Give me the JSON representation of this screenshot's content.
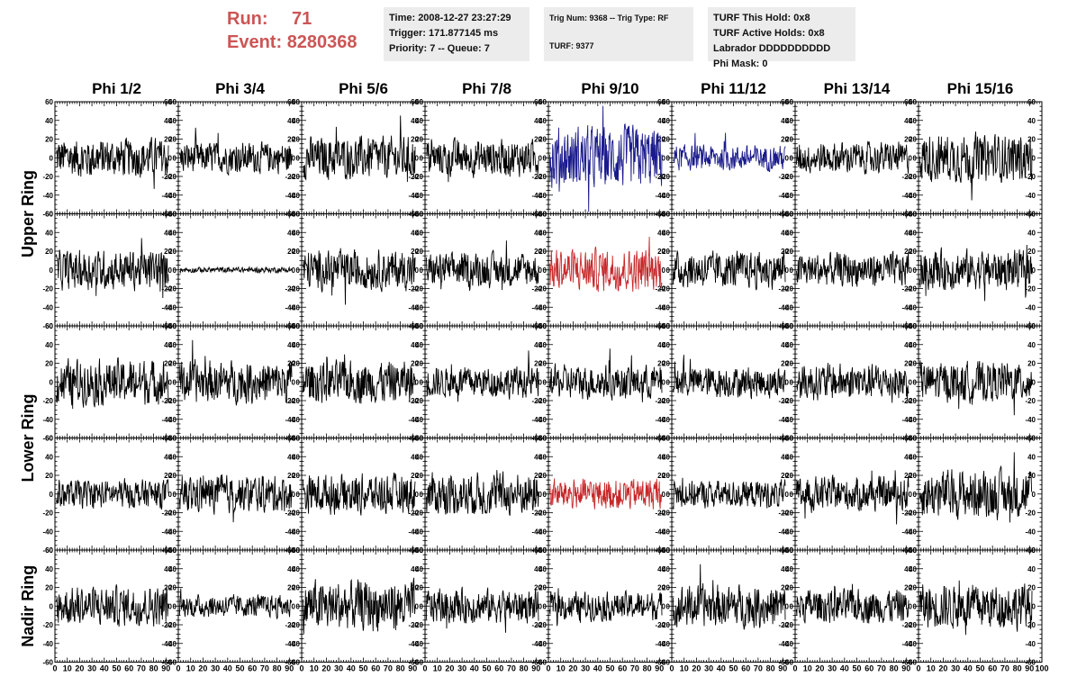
{
  "header": {
    "run_label": "Run:",
    "run_value": "71",
    "event_label": "Event:",
    "event_value": "8280368",
    "time_box": [
      "Time: 2008-12-27 23:27:29",
      "Trigger: 171.877145 ms",
      "Priority: 7 -- Queue: 7"
    ],
    "trig_box": [
      "Trig Num: 9368 -- Trig Type: RF",
      "TURF: 9377"
    ],
    "turf_box": [
      "TURF This Hold: 0x8",
      "TURF Active Holds: 0x8",
      "Labrador DDDDDDDDDD",
      "Phi Mask: 0"
    ]
  },
  "colors": {
    "header_red": "#cc5555",
    "trace_black": "#000000",
    "trace_blue": "#1a1a8c",
    "trace_red": "#c8282a"
  },
  "chart_data": {
    "type": "line",
    "description_of_grid": "5 rows x 8 columns of waveform panels",
    "column_titles": [
      "Phi 1/2",
      "Phi 3/4",
      "Phi 5/6",
      "Phi 7/8",
      "Phi 9/10",
      "Phi 11/12",
      "Phi 13/14",
      "Phi 15/16"
    ],
    "row_groups": [
      {
        "label": "Upper Ring",
        "rows": [
          0,
          1
        ]
      },
      {
        "label": "Lower Ring",
        "rows": [
          2,
          3
        ]
      },
      {
        "label": "Nadir Ring",
        "rows": [
          4
        ]
      }
    ],
    "xlim": [
      0,
      100
    ],
    "ylim": [
      -60,
      60
    ],
    "x_tick_labels": [
      "0",
      "10",
      "20",
      "30",
      "40",
      "50",
      "60",
      "70",
      "80",
      "90",
      "100"
    ],
    "y_tick_labels": [
      "60",
      "40",
      "20",
      "0",
      "-20",
      "-40",
      "-60"
    ],
    "samples_per_trace": 260,
    "trace_x_range": [
      1,
      92
    ],
    "panels": [
      [
        {
          "amp": 14,
          "color": "black"
        },
        {
          "amp": 11,
          "color": "black"
        },
        {
          "amp": 15,
          "color": "black"
        },
        {
          "amp": 13,
          "color": "black"
        },
        {
          "amp": 22,
          "color": "blue"
        },
        {
          "amp": 9,
          "color": "blue"
        },
        {
          "amp": 11,
          "color": "black"
        },
        {
          "amp": 17,
          "color": "black"
        }
      ],
      [
        {
          "amp": 14,
          "color": "black"
        },
        {
          "amp": 2,
          "color": "black"
        },
        {
          "amp": 14,
          "color": "black"
        },
        {
          "amp": 12,
          "color": "black"
        },
        {
          "amp": 15,
          "color": "red"
        },
        {
          "amp": 13,
          "color": "black"
        },
        {
          "amp": 12,
          "color": "black"
        },
        {
          "amp": 14,
          "color": "black"
        }
      ],
      [
        {
          "amp": 16,
          "color": "black"
        },
        {
          "amp": 15,
          "color": "black"
        },
        {
          "amp": 15,
          "color": "black"
        },
        {
          "amp": 11,
          "color": "black"
        },
        {
          "amp": 12,
          "color": "black"
        },
        {
          "amp": 11,
          "color": "black"
        },
        {
          "amp": 13,
          "color": "black"
        },
        {
          "amp": 14,
          "color": "black"
        }
      ],
      [
        {
          "amp": 10,
          "color": "black"
        },
        {
          "amp": 13,
          "color": "black"
        },
        {
          "amp": 14,
          "color": "black"
        },
        {
          "amp": 15,
          "color": "black"
        },
        {
          "amp": 11,
          "color": "red"
        },
        {
          "amp": 10,
          "color": "black"
        },
        {
          "amp": 12,
          "color": "black"
        },
        {
          "amp": 17,
          "color": "black"
        }
      ],
      [
        {
          "amp": 14,
          "color": "black"
        },
        {
          "amp": 8,
          "color": "black"
        },
        {
          "amp": 18,
          "color": "black"
        },
        {
          "amp": 12,
          "color": "black"
        },
        {
          "amp": 10,
          "color": "black"
        },
        {
          "amp": 15,
          "color": "black"
        },
        {
          "amp": 12,
          "color": "black"
        },
        {
          "amp": 16,
          "color": "black"
        }
      ]
    ]
  }
}
